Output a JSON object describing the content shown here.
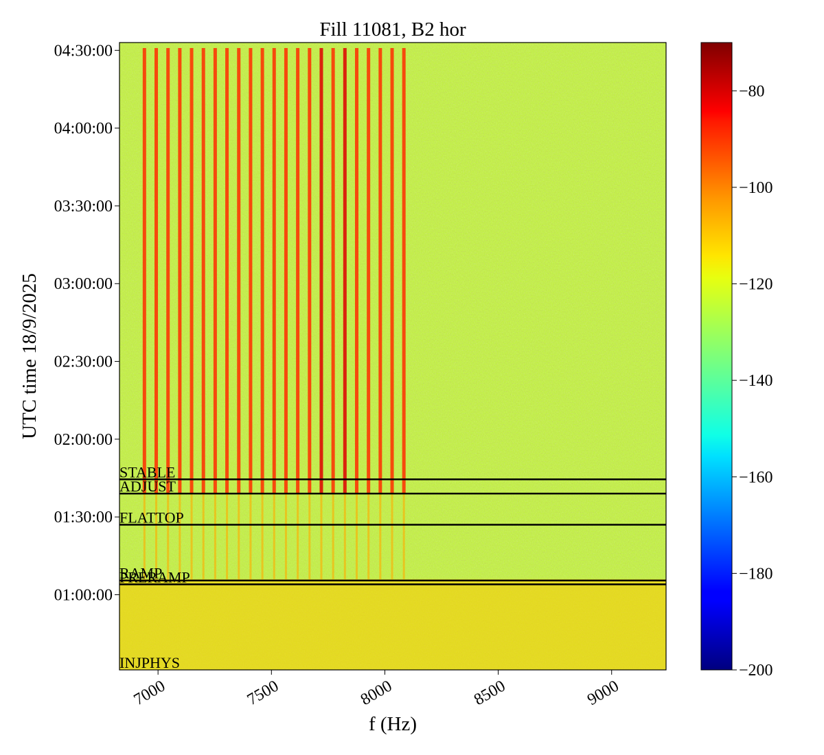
{
  "chart_data": {
    "type": "heatmap",
    "title": "Fill 11081, B2 hor",
    "xlabel": "f (Hz)",
    "ylabel": "UTC time 18/9/2025",
    "xlim": [
      6830,
      9240
    ],
    "x_ticks": [
      7000,
      7500,
      8000,
      8500,
      9000
    ],
    "x_tick_labels": [
      "7000",
      "7500",
      "8000",
      "8500",
      "9000"
    ],
    "ylim_minutes_after_midnight": [
      31,
      273
    ],
    "y_ticks": [
      60,
      90,
      120,
      150,
      180,
      210,
      240,
      270
    ],
    "y_tick_labels": [
      "01:00:00",
      "01:30:00",
      "02:00:00",
      "02:30:00",
      "03:00:00",
      "03:30:00",
      "04:00:00",
      "04:30:00"
    ],
    "colorbar": {
      "colormap": "jet",
      "range": [
        -200,
        -70
      ],
      "ticks": [
        -80,
        -100,
        -120,
        -140,
        -160,
        -180,
        -200
      ],
      "tick_labels": [
        "−80",
        "−100",
        "−120",
        "−140",
        "−160",
        "−180",
        "−200"
      ]
    },
    "phase_markers": [
      {
        "label": "INJPHYS",
        "time_minutes": 31
      },
      {
        "label": "PRERAMP",
        "time_minutes": 64
      },
      {
        "label": "RAMP",
        "time_minutes": 65.5
      },
      {
        "label": "FLATTOP",
        "time_minutes": 87
      },
      {
        "label": "ADJUST",
        "time_minutes": 99
      },
      {
        "label": "STABLE",
        "time_minutes": 104.5
      }
    ],
    "grid": false,
    "spectral_lines": {
      "description_values": "frequencies in Hz of the narrow strong lines",
      "comb_hz": [
        6940,
        6992,
        7044,
        7096,
        7148,
        7200,
        7252,
        7304,
        7356,
        7408,
        7460,
        7512,
        7564,
        7616,
        7668,
        7720,
        7772,
        7824,
        7876,
        7928,
        7980,
        8032,
        8084
      ],
      "peak_hz": [
        7700,
        7845
      ],
      "start_minutes": 99,
      "after_stable_power_db": -92,
      "before_adjust_power_db": -108,
      "background_power_db": -128,
      "ramp_band_power_db": -112,
      "ramp_band_minutes": [
        31,
        66
      ]
    }
  }
}
